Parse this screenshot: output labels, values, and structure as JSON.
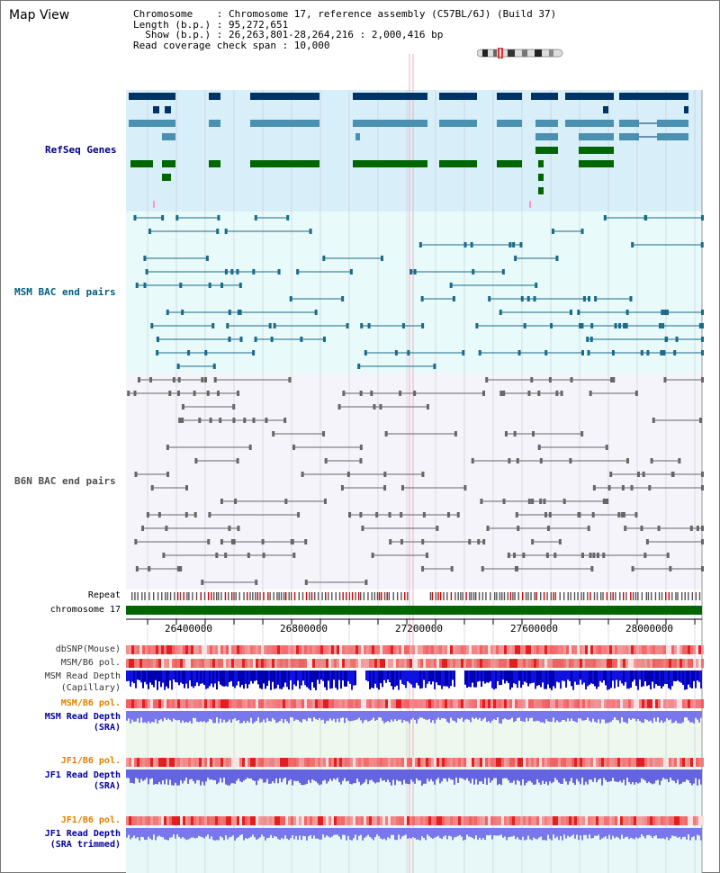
{
  "page": {
    "title": "Map View"
  },
  "header": {
    "line1": "Chromosome    : Chromosome 17, reference assembly (C57BL/6J) (Build 37)",
    "line2": "Length (b.p.) : 95,272,651",
    "line3": "  Show (b.p.) : 26,263,801-28,264,216 : 2,000,416 bp",
    "line4": "Read coverage check span : 10,000"
  },
  "tracks": {
    "refseq": "RefSeq Genes",
    "msm_bac": "MSM BAC end pairs",
    "b6n_bac": "B6N BAC end pairs",
    "repeat": "Repeat",
    "chromosome": "chromosome 17",
    "dbsnp": "dbSNP(Mouse)",
    "msm_b6_pol_1": "MSM/B6 pol.",
    "msm_read_depth_cap_1": "MSM Read Depth",
    "msm_read_depth_cap_2": "(Capillary)",
    "msm_b6_pol_2": "MSM/B6 pol.",
    "msm_read_depth_sra_1": "MSM Read Depth",
    "msm_read_depth_sra_2": "(SRA)",
    "jf1_b6_pol_1": "JF1/B6 pol.",
    "jf1_read_depth_sra_1": "JF1 Read Depth",
    "jf1_read_depth_sra_2": "(SRA)",
    "jf1_b6_pol_2": "JF1/B6 pol.",
    "jf1_read_depth_trim_1": "JF1 Read Depth",
    "jf1_read_depth_trim_2": "(SRA trimmed)"
  },
  "axis": {
    "ticks": [
      "26400000",
      "26800000",
      "27200000",
      "27600000",
      "28000000"
    ]
  },
  "colors": {
    "refseq_label": "#000080",
    "msm_label": "#006080",
    "b6n_label": "#505050",
    "orange_label": "#e08000",
    "blue_label": "#0000a0",
    "refseq_bg": "#d8eef8",
    "msm_bg": "#e8fafa",
    "b6n_bg": "#f4f4fa"
  }
}
